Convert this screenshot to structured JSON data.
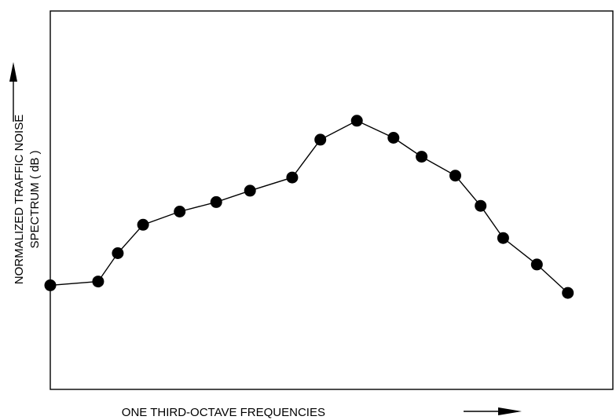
{
  "chart_data": {
    "type": "line",
    "title": "",
    "xlabel": "ONE THIRD-OCTAVE FREQUENCIES",
    "ylabel_line1": "NORMALIZED TRAFFIC NOISE",
    "ylabel_line2": "SPECTRUM ( dB )",
    "x_ticks": false,
    "y_ticks": false,
    "grid": false,
    "legend": "none",
    "series": [
      {
        "x": [
          1,
          2.7,
          3.4,
          4.3,
          5.6,
          6.9,
          8.1,
          9.6,
          10.6,
          11.9,
          13.2,
          14.2,
          15.4,
          16.3,
          17.1,
          18.3,
          19.4
        ],
        "values": [
          0.275,
          0.285,
          0.36,
          0.435,
          0.47,
          0.495,
          0.525,
          0.56,
          0.66,
          0.71,
          0.665,
          0.615,
          0.565,
          0.485,
          0.4,
          0.33,
          0.255
        ]
      }
    ],
    "xlim": [
      1,
      21
    ],
    "ylim": [
      0,
      1
    ]
  }
}
